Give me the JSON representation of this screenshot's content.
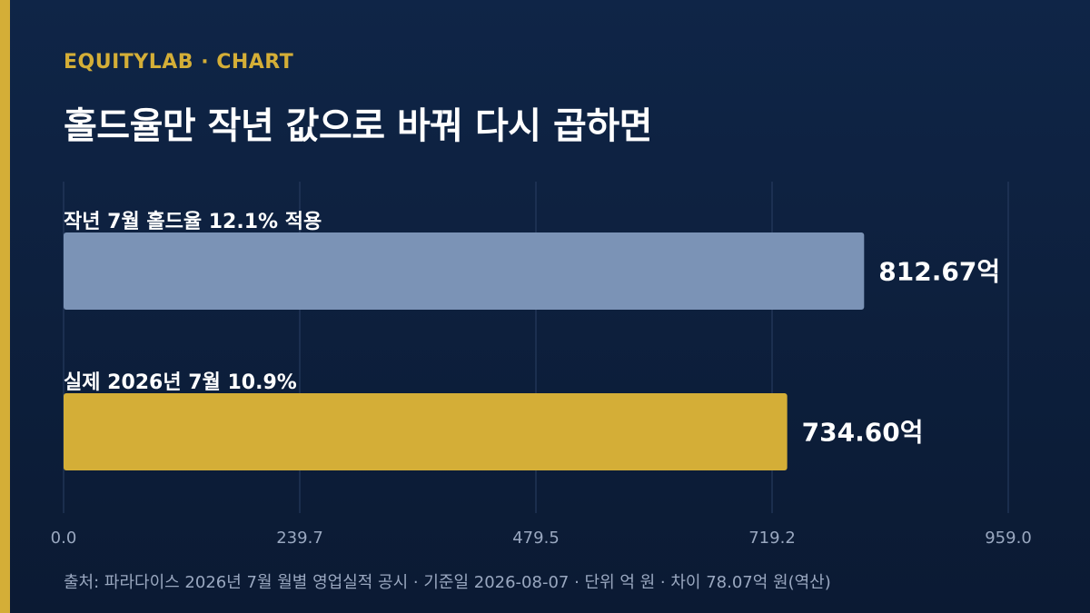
{
  "header": {
    "brand": "EQUITYLAB · CHART",
    "title": "홀드율만 작년 값으로 바꿔 다시 곱하면"
  },
  "chart_data": {
    "type": "bar",
    "orientation": "horizontal",
    "categories": [
      "작년 7월 홀드율 12.1% 적용",
      "실제 2026년 7월 10.9%"
    ],
    "values": [
      812.67,
      734.6
    ],
    "value_labels": [
      "812.67억",
      "734.60억"
    ],
    "xlim": [
      0,
      959.0
    ],
    "xticks": [
      "0.0",
      "239.7",
      "479.5",
      "719.2",
      "959.0"
    ],
    "grid": true,
    "colors": [
      "#7b93b6",
      "#d4ae37"
    ]
  },
  "footer": {
    "source": "출처: 파라다이스 2026년 7월 월별 영업실적 공시 · 기준일 2026-08-07 · 단위 억 원 · 차이 78.07억 원(역산)"
  },
  "colors": {
    "accent": "#d4ae37",
    "background": "#0f2547"
  }
}
